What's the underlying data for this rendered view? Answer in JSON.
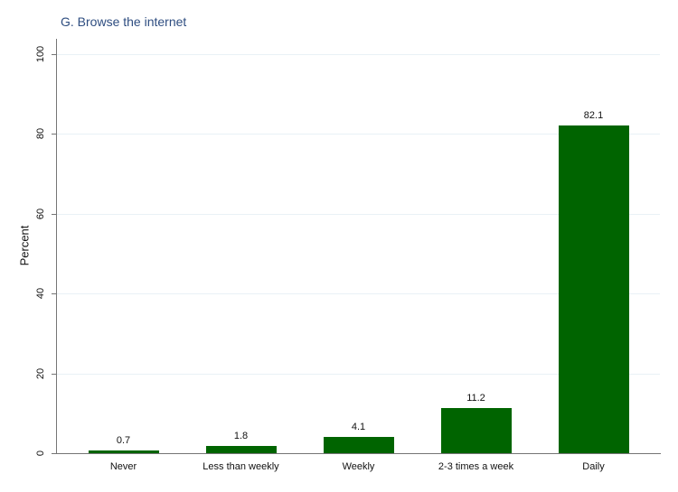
{
  "chart_data": {
    "type": "bar",
    "title": "G. Browse the internet",
    "categories": [
      "Never",
      "Less than weekly",
      "Weekly",
      "2-3 times a week",
      "Daily"
    ],
    "values": [
      0.7,
      1.8,
      4.1,
      11.2,
      82.1
    ],
    "value_labels": [
      "0.7",
      "1.8",
      "4.1",
      "11.2",
      "82.1"
    ],
    "xlabel": "",
    "ylabel": "Percent",
    "ylim": [
      0,
      100
    ],
    "yticks": [
      0,
      20,
      40,
      60,
      80,
      100
    ],
    "grid": true,
    "legend": "none",
    "colors": {
      "bar_fill": "#006400",
      "gridline": "#e9f1f6",
      "axis": "#757575",
      "title_text": "#2e4d80",
      "label_text": "#111111"
    }
  }
}
